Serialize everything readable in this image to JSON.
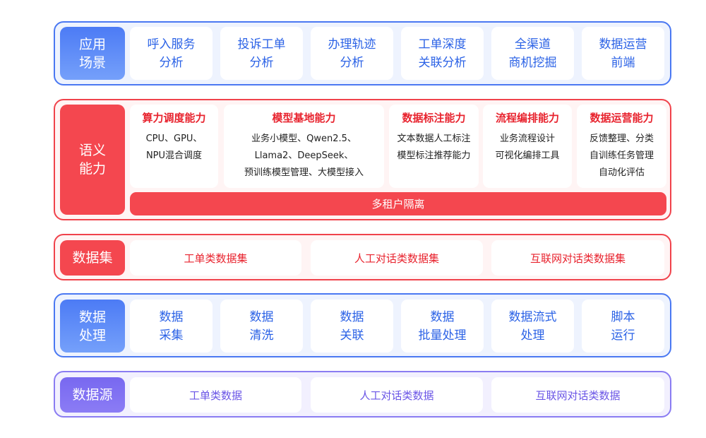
{
  "colors": {
    "blue": "#4a78f2",
    "red": "#f0424b",
    "purple": "#8a7cf2"
  },
  "application": {
    "label": "应用\n场景",
    "items": [
      "呼入服务\n分析",
      "投诉工单\n分析",
      "办理轨迹\n分析",
      "工单深度\n关联分析",
      "全渠道\n商机挖掘",
      "数据运营\n前端"
    ]
  },
  "semantic": {
    "label": "语义\n能力",
    "items": [
      {
        "title": "算力调度能力",
        "body": "CPU、GPU、\nNPU混合调度"
      },
      {
        "title": "模型基地能力",
        "body": "业务小模型、Qwen2.5、\nLlama2、DeepSeek、\n预训练模型管理、大模型接入"
      },
      {
        "title": "数据标注能力",
        "body": "文本数据人工标注\n模型标注推荐能力"
      },
      {
        "title": "流程编排能力",
        "body": "业务流程设计\n可视化编排工具"
      },
      {
        "title": "数据运营能力",
        "body": "反馈整理、分类\n自训练任务管理\n自动化评估"
      }
    ],
    "bar": "多租户隔离"
  },
  "dataset": {
    "label": "数据集",
    "items": [
      "工单类数据集",
      "人工对话类数据集",
      "互联网对话类数据集"
    ]
  },
  "processing": {
    "label": "数据\n处理",
    "items": [
      "数据\n采集",
      "数据\n清洗",
      "数据\n关联",
      "数据\n批量处理",
      "数据流式\n处理",
      "脚本\n运行"
    ]
  },
  "source": {
    "label": "数据源",
    "items": [
      "工单类数据",
      "人工对话类数据",
      "互联网对话类数据"
    ]
  }
}
